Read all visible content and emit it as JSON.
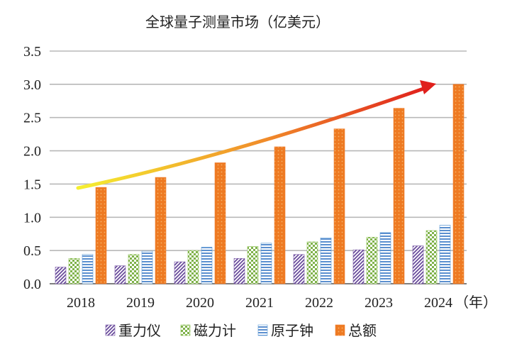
{
  "chart_data": {
    "type": "bar",
    "title": "全球量子测量市场（亿美元）",
    "x_unit": "（年）",
    "categories": [
      "2018",
      "2019",
      "2020",
      "2021",
      "2022",
      "2023",
      "2024"
    ],
    "ylim": [
      0,
      3.5
    ],
    "yticks": [
      "0.0",
      "0.5",
      "1.0",
      "1.5",
      "2.0",
      "2.5",
      "3.0",
      "3.5"
    ],
    "grid": true,
    "legend_position": "bottom",
    "series": [
      {
        "name": "重力仪",
        "values": [
          0.25,
          0.27,
          0.33,
          0.38,
          0.44,
          0.51,
          0.57
        ],
        "color": "#7a5aa6",
        "pattern": "diagonal"
      },
      {
        "name": "磁力计",
        "values": [
          0.38,
          0.44,
          0.5,
          0.56,
          0.63,
          0.7,
          0.8
        ],
        "color": "#8cc152",
        "pattern": "checker"
      },
      {
        "name": "原子钟",
        "values": [
          0.44,
          0.49,
          0.55,
          0.61,
          0.69,
          0.77,
          0.88
        ],
        "color": "#5b9bd5",
        "pattern": "horizontal"
      },
      {
        "name": "总额",
        "values": [
          1.45,
          1.6,
          1.82,
          2.06,
          2.33,
          2.64,
          3.0
        ],
        "color": "#ed7d31",
        "pattern": "dots"
      }
    ],
    "trend_arrow": {
      "from_color": "#f5ef30",
      "to_color": "#e0201c"
    }
  }
}
